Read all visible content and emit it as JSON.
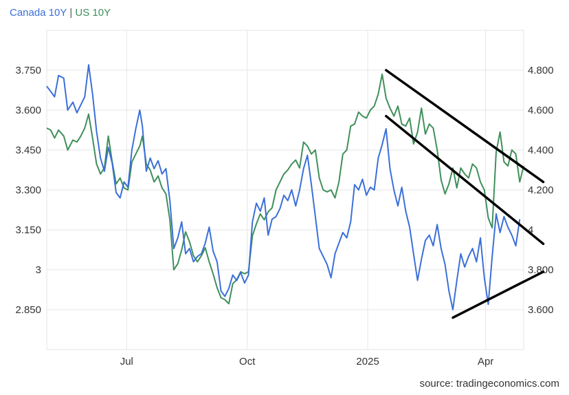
{
  "legend": {
    "separator": "|"
  },
  "source": "source: tradingeconomics.com",
  "colors": {
    "canada": "#3a6fd8",
    "us": "#3f8f5a",
    "grid": "#e6e6e6",
    "trendline": "#000000"
  },
  "chart_data": {
    "type": "line",
    "x_ticks": [
      "Jul",
      "Oct",
      "2025",
      "Apr"
    ],
    "x_tick_dates": [
      "2024-07-01",
      "2024-10-01",
      "2025-01-01",
      "2025-04-01"
    ],
    "x_range": [
      "2024-05-01",
      "2025-04-30"
    ],
    "left_axis": {
      "ticks": [
        "3.750",
        "3.600",
        "3.450",
        "3.300",
        "3.150",
        "3",
        "2.850"
      ],
      "range": [
        2.7,
        3.9
      ]
    },
    "right_axis": {
      "ticks": [
        "4.800",
        "4.600",
        "4.400",
        "4.200",
        "4",
        "3.800",
        "3.600"
      ],
      "range": [
        3.4,
        5.0
      ]
    },
    "grid": true,
    "legend_position": "top-left",
    "series": [
      {
        "name": "Canada 10Y",
        "axis": "left",
        "points": [
          [
            "2024-05-01",
            3.69
          ],
          [
            "2024-05-04",
            3.67
          ],
          [
            "2024-05-07",
            3.65
          ],
          [
            "2024-05-10",
            3.73
          ],
          [
            "2024-05-14",
            3.72
          ],
          [
            "2024-05-17",
            3.6
          ],
          [
            "2024-05-21",
            3.63
          ],
          [
            "2024-05-24",
            3.59
          ],
          [
            "2024-05-27",
            3.62
          ],
          [
            "2024-05-30",
            3.65
          ],
          [
            "2024-06-02",
            3.77
          ],
          [
            "2024-06-05",
            3.66
          ],
          [
            "2024-06-08",
            3.52
          ],
          [
            "2024-06-11",
            3.42
          ],
          [
            "2024-06-14",
            3.37
          ],
          [
            "2024-06-17",
            3.46
          ],
          [
            "2024-06-20",
            3.4
          ],
          [
            "2024-06-23",
            3.29
          ],
          [
            "2024-06-26",
            3.27
          ],
          [
            "2024-06-29",
            3.33
          ],
          [
            "2024-07-02",
            3.31
          ],
          [
            "2024-07-05",
            3.45
          ],
          [
            "2024-07-08",
            3.53
          ],
          [
            "2024-07-11",
            3.6
          ],
          [
            "2024-07-13",
            3.54
          ],
          [
            "2024-07-16",
            3.37
          ],
          [
            "2024-07-19",
            3.42
          ],
          [
            "2024-07-22",
            3.38
          ],
          [
            "2024-07-25",
            3.41
          ],
          [
            "2024-07-28",
            3.36
          ],
          [
            "2024-07-31",
            3.38
          ],
          [
            "2024-08-03",
            3.26
          ],
          [
            "2024-08-06",
            3.08
          ],
          [
            "2024-08-09",
            3.12
          ],
          [
            "2024-08-12",
            3.18
          ],
          [
            "2024-08-15",
            3.06
          ],
          [
            "2024-08-18",
            3.08
          ],
          [
            "2024-08-21",
            3.03
          ],
          [
            "2024-08-24",
            3.05
          ],
          [
            "2024-08-27",
            3.06
          ],
          [
            "2024-08-30",
            3.1
          ],
          [
            "2024-09-02",
            3.16
          ],
          [
            "2024-09-05",
            3.07
          ],
          [
            "2024-09-08",
            3.03
          ],
          [
            "2024-09-11",
            2.92
          ],
          [
            "2024-09-14",
            2.9
          ],
          [
            "2024-09-17",
            2.93
          ],
          [
            "2024-09-20",
            2.98
          ],
          [
            "2024-09-23",
            2.96
          ],
          [
            "2024-09-26",
            2.99
          ],
          [
            "2024-09-29",
            2.95
          ],
          [
            "2024-10-02",
            2.98
          ],
          [
            "2024-10-05",
            3.18
          ],
          [
            "2024-10-08",
            3.25
          ],
          [
            "2024-10-11",
            3.22
          ],
          [
            "2024-10-14",
            3.27
          ],
          [
            "2024-10-17",
            3.13
          ],
          [
            "2024-10-20",
            3.19
          ],
          [
            "2024-10-23",
            3.2
          ],
          [
            "2024-10-26",
            3.23
          ],
          [
            "2024-10-29",
            3.28
          ],
          [
            "2024-11-01",
            3.26
          ],
          [
            "2024-11-04",
            3.3
          ],
          [
            "2024-11-07",
            3.24
          ],
          [
            "2024-11-10",
            3.3
          ],
          [
            "2024-11-13",
            3.38
          ],
          [
            "2024-11-16",
            3.43
          ],
          [
            "2024-11-19",
            3.32
          ],
          [
            "2024-11-22",
            3.2
          ],
          [
            "2024-11-25",
            3.08
          ],
          [
            "2024-11-28",
            3.05
          ],
          [
            "2024-12-01",
            3.02
          ],
          [
            "2024-12-04",
            2.97
          ],
          [
            "2024-12-07",
            3.06
          ],
          [
            "2024-12-10",
            3.1
          ],
          [
            "2024-12-13",
            3.14
          ],
          [
            "2024-12-16",
            3.12
          ],
          [
            "2024-12-19",
            3.18
          ],
          [
            "2024-12-22",
            3.32
          ],
          [
            "2024-12-25",
            3.3
          ],
          [
            "2024-12-28",
            3.34
          ],
          [
            "2024-12-31",
            3.28
          ],
          [
            "2025-01-03",
            3.31
          ],
          [
            "2025-01-06",
            3.3
          ],
          [
            "2025-01-09",
            3.42
          ],
          [
            "2025-01-12",
            3.47
          ],
          [
            "2025-01-15",
            3.53
          ],
          [
            "2025-01-18",
            3.38
          ],
          [
            "2025-01-21",
            3.3
          ],
          [
            "2025-01-24",
            3.24
          ],
          [
            "2025-01-27",
            3.31
          ],
          [
            "2025-01-30",
            3.22
          ],
          [
            "2025-02-02",
            3.16
          ],
          [
            "2025-02-05",
            3.06
          ],
          [
            "2025-02-08",
            2.96
          ],
          [
            "2025-02-11",
            3.04
          ],
          [
            "2025-02-14",
            3.11
          ],
          [
            "2025-02-17",
            3.13
          ],
          [
            "2025-02-20",
            3.09
          ],
          [
            "2025-02-23",
            3.17
          ],
          [
            "2025-02-26",
            3.08
          ],
          [
            "2025-03-01",
            3.02
          ],
          [
            "2025-03-04",
            2.92
          ],
          [
            "2025-03-07",
            2.85
          ],
          [
            "2025-03-10",
            2.96
          ],
          [
            "2025-03-13",
            3.06
          ],
          [
            "2025-03-16",
            3.01
          ],
          [
            "2025-03-19",
            3.05
          ],
          [
            "2025-03-22",
            3.08
          ],
          [
            "2025-03-25",
            3.03
          ],
          [
            "2025-03-28",
            3.12
          ],
          [
            "2025-03-31",
            2.97
          ],
          [
            "2025-04-03",
            2.87
          ],
          [
            "2025-04-06",
            3.05
          ],
          [
            "2025-04-09",
            3.21
          ],
          [
            "2025-04-12",
            3.14
          ],
          [
            "2025-04-15",
            3.2
          ],
          [
            "2025-04-18",
            3.16
          ],
          [
            "2025-04-21",
            3.13
          ],
          [
            "2025-04-24",
            3.09
          ],
          [
            "2025-04-27",
            3.19
          ]
        ]
      },
      {
        "name": "US 10Y",
        "axis": "right",
        "points": [
          [
            "2024-05-01",
            4.51
          ],
          [
            "2024-05-04",
            4.5
          ],
          [
            "2024-05-07",
            4.46
          ],
          [
            "2024-05-10",
            4.5
          ],
          [
            "2024-05-14",
            4.47
          ],
          [
            "2024-05-17",
            4.4
          ],
          [
            "2024-05-21",
            4.45
          ],
          [
            "2024-05-24",
            4.44
          ],
          [
            "2024-05-27",
            4.47
          ],
          [
            "2024-05-30",
            4.51
          ],
          [
            "2024-06-02",
            4.58
          ],
          [
            "2024-06-05",
            4.46
          ],
          [
            "2024-06-08",
            4.33
          ],
          [
            "2024-06-11",
            4.28
          ],
          [
            "2024-06-14",
            4.31
          ],
          [
            "2024-06-17",
            4.47
          ],
          [
            "2024-06-20",
            4.34
          ],
          [
            "2024-06-23",
            4.23
          ],
          [
            "2024-06-26",
            4.26
          ],
          [
            "2024-06-29",
            4.21
          ],
          [
            "2024-07-02",
            4.2
          ],
          [
            "2024-07-05",
            4.34
          ],
          [
            "2024-07-08",
            4.38
          ],
          [
            "2024-07-11",
            4.42
          ],
          [
            "2024-07-13",
            4.47
          ],
          [
            "2024-07-16",
            4.33
          ],
          [
            "2024-07-19",
            4.3
          ],
          [
            "2024-07-22",
            4.24
          ],
          [
            "2024-07-25",
            4.27
          ],
          [
            "2024-07-28",
            4.21
          ],
          [
            "2024-07-31",
            4.18
          ],
          [
            "2024-08-03",
            4.05
          ],
          [
            "2024-08-06",
            3.8
          ],
          [
            "2024-08-09",
            3.83
          ],
          [
            "2024-08-12",
            3.9
          ],
          [
            "2024-08-15",
            3.99
          ],
          [
            "2024-08-18",
            3.94
          ],
          [
            "2024-08-21",
            3.87
          ],
          [
            "2024-08-24",
            3.84
          ],
          [
            "2024-08-27",
            3.87
          ],
          [
            "2024-08-30",
            3.91
          ],
          [
            "2024-09-02",
            3.84
          ],
          [
            "2024-09-05",
            3.78
          ],
          [
            "2024-09-08",
            3.71
          ],
          [
            "2024-09-11",
            3.66
          ],
          [
            "2024-09-14",
            3.65
          ],
          [
            "2024-09-17",
            3.63
          ],
          [
            "2024-09-20",
            3.73
          ],
          [
            "2024-09-23",
            3.75
          ],
          [
            "2024-09-26",
            3.79
          ],
          [
            "2024-09-29",
            3.78
          ],
          [
            "2024-10-02",
            3.79
          ],
          [
            "2024-10-05",
            3.97
          ],
          [
            "2024-10-08",
            4.03
          ],
          [
            "2024-10-11",
            4.08
          ],
          [
            "2024-10-14",
            4.05
          ],
          [
            "2024-10-17",
            4.09
          ],
          [
            "2024-10-20",
            4.11
          ],
          [
            "2024-10-23",
            4.2
          ],
          [
            "2024-10-26",
            4.24
          ],
          [
            "2024-10-29",
            4.28
          ],
          [
            "2024-11-01",
            4.3
          ],
          [
            "2024-11-04",
            4.33
          ],
          [
            "2024-11-07",
            4.35
          ],
          [
            "2024-11-10",
            4.31
          ],
          [
            "2024-11-13",
            4.44
          ],
          [
            "2024-11-16",
            4.42
          ],
          [
            "2024-11-19",
            4.38
          ],
          [
            "2024-11-22",
            4.4
          ],
          [
            "2024-11-25",
            4.26
          ],
          [
            "2024-11-28",
            4.2
          ],
          [
            "2024-12-01",
            4.19
          ],
          [
            "2024-12-04",
            4.2
          ],
          [
            "2024-12-07",
            4.16
          ],
          [
            "2024-12-10",
            4.24
          ],
          [
            "2024-12-13",
            4.38
          ],
          [
            "2024-12-16",
            4.4
          ],
          [
            "2024-12-19",
            4.52
          ],
          [
            "2024-12-22",
            4.53
          ],
          [
            "2024-12-25",
            4.59
          ],
          [
            "2024-12-28",
            4.57
          ],
          [
            "2024-12-31",
            4.56
          ],
          [
            "2025-01-03",
            4.6
          ],
          [
            "2025-01-06",
            4.62
          ],
          [
            "2025-01-09",
            4.68
          ],
          [
            "2025-01-12",
            4.78
          ],
          [
            "2025-01-15",
            4.66
          ],
          [
            "2025-01-18",
            4.61
          ],
          [
            "2025-01-21",
            4.57
          ],
          [
            "2025-01-24",
            4.62
          ],
          [
            "2025-01-27",
            4.53
          ],
          [
            "2025-01-30",
            4.52
          ],
          [
            "2025-02-02",
            4.56
          ],
          [
            "2025-02-05",
            4.43
          ],
          [
            "2025-02-08",
            4.49
          ],
          [
            "2025-02-11",
            4.61
          ],
          [
            "2025-02-14",
            4.48
          ],
          [
            "2025-02-17",
            4.53
          ],
          [
            "2025-02-20",
            4.51
          ],
          [
            "2025-02-23",
            4.4
          ],
          [
            "2025-02-26",
            4.25
          ],
          [
            "2025-03-01",
            4.18
          ],
          [
            "2025-03-04",
            4.23
          ],
          [
            "2025-03-07",
            4.31
          ],
          [
            "2025-03-10",
            4.21
          ],
          [
            "2025-03-13",
            4.31
          ],
          [
            "2025-03-16",
            4.28
          ],
          [
            "2025-03-19",
            4.26
          ],
          [
            "2025-03-22",
            4.33
          ],
          [
            "2025-03-25",
            4.31
          ],
          [
            "2025-03-28",
            4.24
          ],
          [
            "2025-03-31",
            4.2
          ],
          [
            "2025-04-03",
            4.06
          ],
          [
            "2025-04-06",
            4.01
          ],
          [
            "2025-04-09",
            4.39
          ],
          [
            "2025-04-12",
            4.49
          ],
          [
            "2025-04-15",
            4.34
          ],
          [
            "2025-04-18",
            4.32
          ],
          [
            "2025-04-21",
            4.4
          ],
          [
            "2025-04-24",
            4.38
          ],
          [
            "2025-04-27",
            4.24
          ],
          [
            "2025-04-30",
            4.32
          ]
        ]
      }
    ],
    "trendlines": [
      {
        "from": [
          "2025-01-15",
          4.8
        ],
        "to": [
          "2025-05-15",
          4.24
        ],
        "axis": "right"
      },
      {
        "from": [
          "2025-01-15",
          4.57
        ],
        "to": [
          "2025-05-15",
          3.93
        ],
        "axis": "right"
      },
      {
        "from": [
          "2025-03-07",
          3.56
        ],
        "to": [
          "2025-05-15",
          3.79
        ],
        "axis": "right"
      }
    ]
  }
}
